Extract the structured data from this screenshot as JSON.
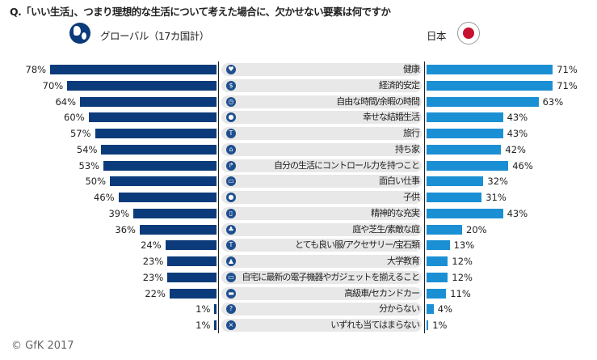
{
  "chart_data": {
    "type": "bar",
    "title": "Q.「いい生活」、つまり理想的な生活について考えた場合に、欠かせない要素は何ですか",
    "categories": [
      "健康",
      "経済的安定",
      "自由な時間/余暇の時間",
      "幸せな結婚生活",
      "旅行",
      "持ち家",
      "自分の生活にコントロール力を持つこと",
      "面白い仕事",
      "子供",
      "精神的な充実",
      "庭や芝生/素敵な庭",
      "とても良い服/アクセサリー/宝石類",
      "大学教育",
      "自宅に最新の電子機器やガジェットを揃えること",
      "高級車/セカンドカー",
      "分からない",
      "いずれも当てはまらない"
    ],
    "icons": [
      "heart-icon",
      "money-icon",
      "clock-icon",
      "couple-icon",
      "palm-tree-icon",
      "house-icon",
      "signpost-icon",
      "briefcase-icon",
      "children-icon",
      "book-icon",
      "tree-icon",
      "shirt-icon",
      "graduation-cap-icon",
      "laptop-icon",
      "car-icon",
      "question-icon",
      "cross-icon"
    ],
    "series": [
      {
        "name": "グローバル（17カ国計）",
        "color": "#0b3b7a",
        "values": [
          78,
          70,
          64,
          60,
          57,
          54,
          53,
          50,
          46,
          39,
          36,
          24,
          23,
          23,
          22,
          1,
          1
        ]
      },
      {
        "name": "日本",
        "color": "#1b8fd4",
        "values": [
          71,
          71,
          63,
          43,
          43,
          42,
          46,
          32,
          31,
          43,
          20,
          13,
          12,
          12,
          11,
          4,
          1
        ]
      }
    ],
    "unit": "%"
  },
  "footer": {
    "copyright": "© GfK 2017"
  }
}
